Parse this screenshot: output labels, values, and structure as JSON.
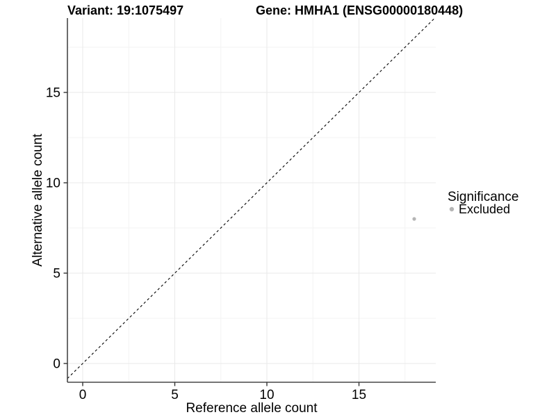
{
  "header": {
    "title_left": "Variant: 19:1075497",
    "title_right": "Gene: HMHA1 (ENSG00000180448)"
  },
  "legend": {
    "title": "Significance",
    "items": [
      {
        "label": "Excluded",
        "color": "#b5b5b5"
      }
    ],
    "position": "right"
  },
  "colors": {
    "background": "#ffffff",
    "grid_major": "#e9e9e9",
    "grid_minor": "#f3f3f3",
    "axis_line": "#474747",
    "tick_mark": "#333333",
    "text": "#000000",
    "diagonal_line": "#000000",
    "point": "#b5b5b5"
  },
  "chart_data": {
    "type": "scatter",
    "title": "Variant: 19:1075497   Gene: HMHA1 (ENSG00000180448)",
    "xlabel": "Reference allele count",
    "ylabel": "Alternative allele count",
    "xlim": [
      -0.85,
      19.2
    ],
    "ylim": [
      -1.05,
      19.1
    ],
    "xticks": [
      0,
      5,
      10,
      15
    ],
    "yticks": [
      0,
      5,
      10,
      15
    ],
    "minor_ticks_x": [
      2.5,
      7.5,
      12.5,
      17.5
    ],
    "minor_ticks_y": [
      2.5,
      7.5,
      12.5,
      17.5
    ],
    "grid": true,
    "legend_position": "right",
    "reference_line": {
      "type": "identity",
      "equation": "y = x",
      "style": "dashed",
      "color": "#000000"
    },
    "series": [
      {
        "name": "Excluded",
        "color": "#b5b5b5",
        "points": [
          {
            "x": 18,
            "y": 8
          }
        ]
      }
    ]
  }
}
